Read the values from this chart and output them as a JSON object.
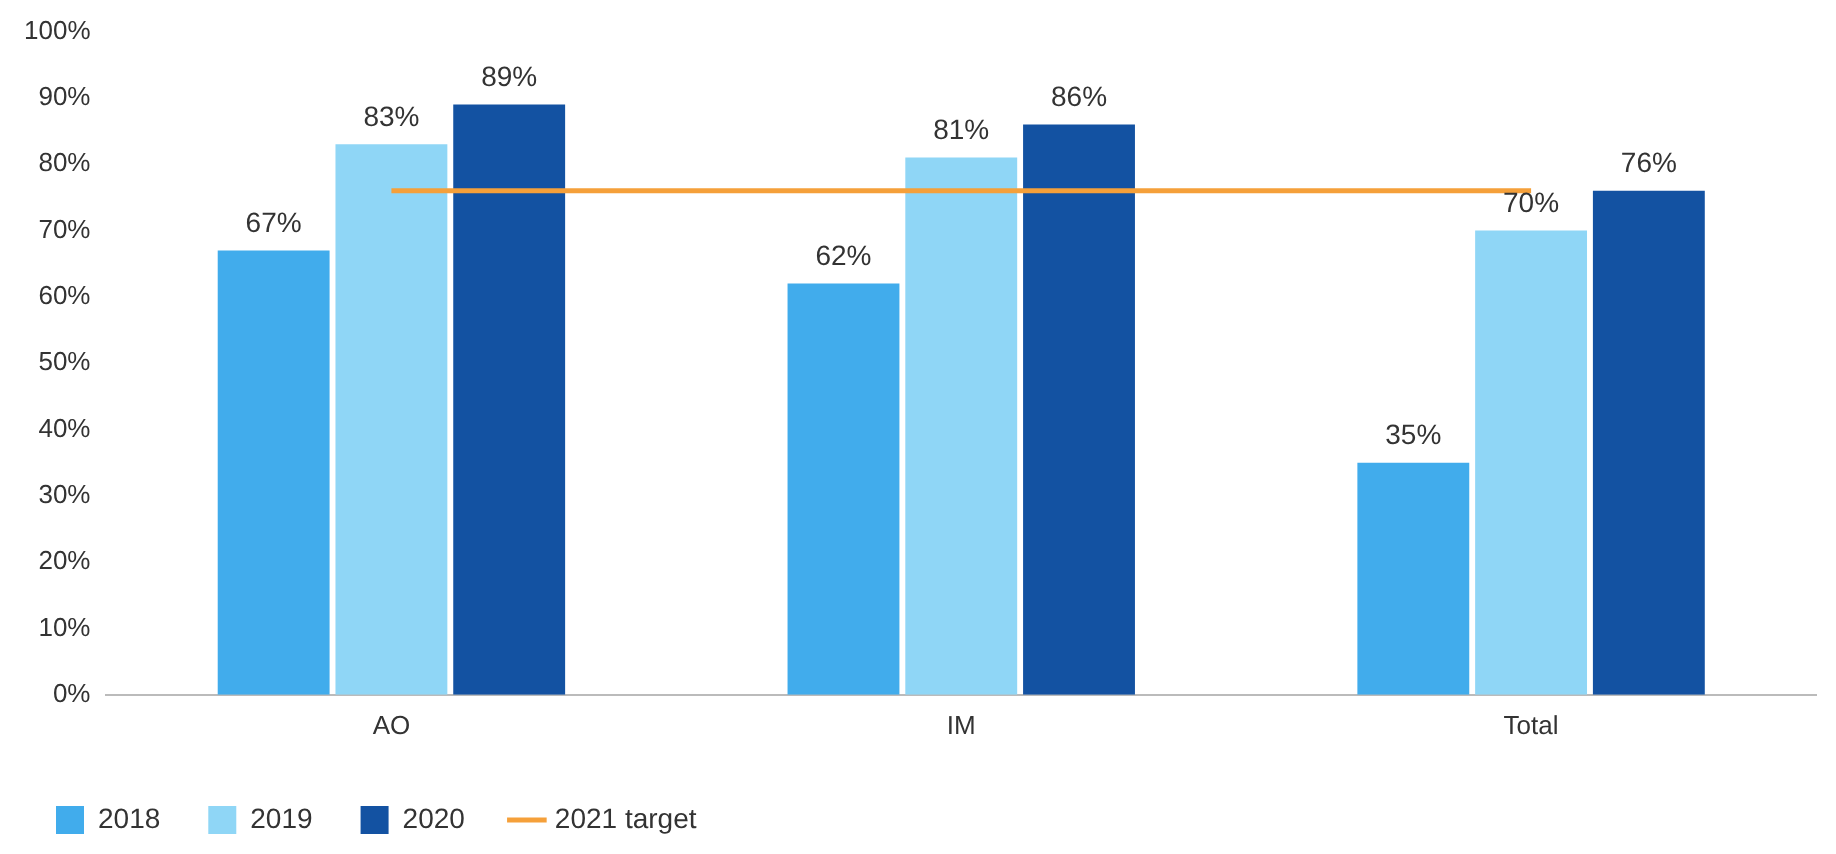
{
  "chart_data": {
    "type": "bar",
    "categories": [
      "AO",
      "IM",
      "Total"
    ],
    "series": [
      {
        "name": "2018",
        "color": "#41acec",
        "values": [
          67,
          62,
          35
        ],
        "value_labels": [
          "67%",
          "62%",
          "35%"
        ]
      },
      {
        "name": "2019",
        "color": "#8fd6f6",
        "values": [
          83,
          81,
          70
        ],
        "value_labels": [
          "83%",
          "81%",
          "70%"
        ]
      },
      {
        "name": "2020",
        "color": "#1352a2",
        "values": [
          89,
          86,
          76
        ],
        "value_labels": [
          "89%",
          "86%",
          "76%"
        ]
      },
      {
        "name": "2021 target",
        "type": "line",
        "color": "#f5a03a",
        "values": [
          76,
          76,
          76
        ]
      }
    ],
    "ylim": [
      0,
      100
    ],
    "yticks": [
      {
        "value": 0,
        "label": "0%"
      },
      {
        "value": 10,
        "label": "10%"
      },
      {
        "value": 20,
        "label": "20%"
      },
      {
        "value": 30,
        "label": "30%"
      },
      {
        "value": 40,
        "label": "40%"
      },
      {
        "value": 50,
        "label": "50%"
      },
      {
        "value": 60,
        "label": "60%"
      },
      {
        "value": 70,
        "label": "70%"
      },
      {
        "value": 80,
        "label": "80%"
      },
      {
        "value": 90,
        "label": "90%"
      },
      {
        "value": 100,
        "label": "100%"
      }
    ],
    "grid": false,
    "legend": "bottom left",
    "marker": "none"
  }
}
